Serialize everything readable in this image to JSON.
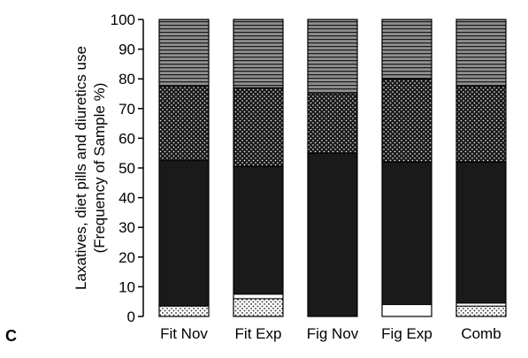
{
  "panel_label": "C",
  "chart_data": {
    "type": "bar",
    "stacked": true,
    "title": "",
    "ylabel_lines": [
      "Laxatives, diet pills and diuretics use",
      "(Frequency of Sample %)"
    ],
    "xlabel": "",
    "ylim": [
      0,
      100
    ],
    "yticks": [
      0,
      10,
      20,
      30,
      40,
      50,
      60,
      70,
      80,
      90,
      100
    ],
    "grid": false,
    "legend": "none",
    "categories": [
      "Fit Nov",
      "Fit Exp",
      "Fig Nov",
      "Fig Exp",
      "Comb"
    ],
    "series": [
      {
        "pattern": "light-dots",
        "values": [
          3.5,
          6,
          0,
          0,
          3.5
        ]
      },
      {
        "pattern": "white",
        "values": [
          0,
          1.5,
          0,
          4,
          1
        ]
      },
      {
        "pattern": "solid-black",
        "values": [
          49,
          43,
          55,
          48,
          47.5
        ]
      },
      {
        "pattern": "black-dots",
        "values": [
          25,
          26.5,
          20,
          28,
          25.5
        ]
      },
      {
        "pattern": "horizontal-stripes",
        "values": [
          22.5,
          23,
          25,
          20,
          22.5
        ]
      }
    ]
  },
  "colors": {
    "black": "#1a1a1a",
    "stripe_gray": "#8f8f8f",
    "white": "#ffffff"
  }
}
